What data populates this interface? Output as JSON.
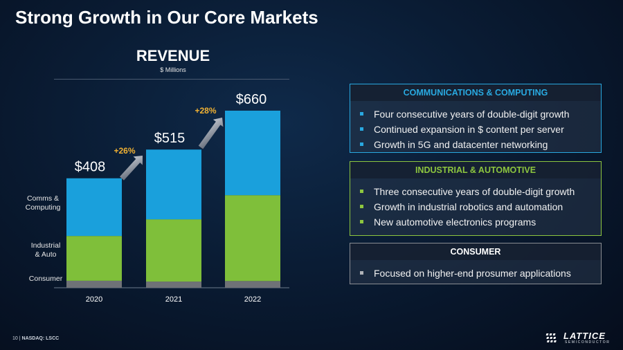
{
  "slide": {
    "title": "Strong Growth in Our Core Markets",
    "footer_page": "10",
    "footer_sep": "|",
    "footer_ticker": "NASDAQ: LSCC",
    "logo_word": "LATTICE",
    "logo_sub": "SEMICONDUCTOR"
  },
  "chart_data": {
    "type": "bar",
    "stacked": true,
    "title": "REVENUE",
    "subtitle": "$ Millions",
    "categories": [
      "2020",
      "2021",
      "2022"
    ],
    "series": [
      {
        "name": "Consumer",
        "color": "#6f7277",
        "values": [
          26,
          23,
          25
        ]
      },
      {
        "name": "Industrial & Auto",
        "color": "#7fbf3a",
        "values": [
          167,
          232,
          320
        ]
      },
      {
        "name": "Comms & Computing",
        "color": "#1aa0dc",
        "values": [
          215,
          260,
          315
        ]
      }
    ],
    "totals": [
      408,
      515,
      660
    ],
    "total_labels": [
      "$408",
      "$515",
      "$660"
    ],
    "growth_labels": [
      "+26%",
      "+28%"
    ],
    "legend_labels": [
      "Comms &\nComputing",
      "Industrial\n& Auto",
      "Consumer"
    ],
    "ylim": [
      0,
      660
    ]
  },
  "panels": {
    "comm": {
      "title": "COMMUNICATIONS & COMPUTING",
      "items": [
        "Four consecutive years of double-digit growth",
        "Continued expansion in $ content per server",
        "Growth in 5G and datacenter networking"
      ]
    },
    "ind": {
      "title": "INDUSTRIAL & AUTOMOTIVE",
      "items": [
        "Three consecutive years of double-digit growth",
        "Growth in industrial robotics and automation",
        "New automotive electronics programs"
      ]
    },
    "con": {
      "title": "CONSUMER",
      "items": [
        "Focused on higher-end prosumer applications"
      ]
    }
  },
  "colors": {
    "comm_accent": "#29a9e0",
    "ind_accent": "#8dc63f",
    "growth_label": "#f2b233"
  }
}
